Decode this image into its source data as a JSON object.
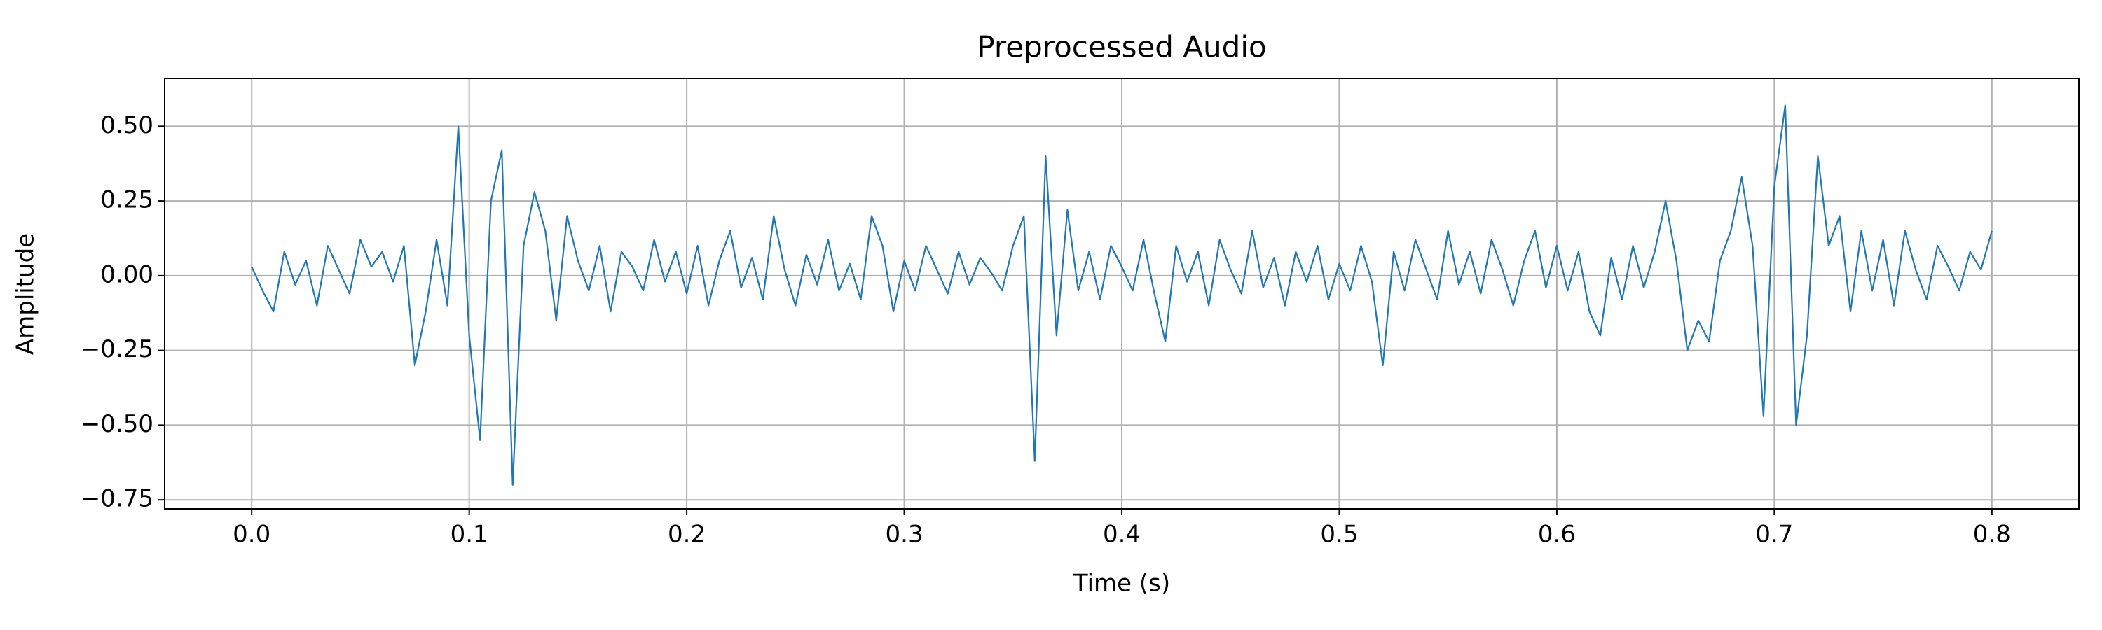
{
  "chart_data": {
    "type": "line",
    "title": "Preprocessed Audio",
    "x_label": "Time (s)",
    "y_label": "Amplitude",
    "grid": true,
    "xlim": [
      -0.04,
      0.84
    ],
    "ylim": [
      -0.78,
      0.66
    ],
    "xticks": [
      {
        "value": 0,
        "label": "0.0"
      },
      0.1,
      0.2,
      0.3,
      0.4,
      0.5,
      0.6,
      0.7,
      0.8
    ],
    "yticks": [
      {
        "value": -0.75,
        "label": "−0.75"
      },
      {
        "value": -0.5,
        "label": "−0.50"
      },
      {
        "value": -0.25,
        "label": "−0.25"
      },
      {
        "value": 0,
        "label": "0.00"
      },
      {
        "value": 0.25,
        "label": "0.25"
      },
      {
        "value": 0.5,
        "label": "0.50"
      }
    ],
    "x": [
      0,
      0.005,
      0.01,
      0.015,
      0.02,
      0.025,
      0.03,
      0.035,
      0.04,
      0.045,
      0.05,
      0.055,
      0.06,
      0.065,
      0.07,
      0.075,
      0.08,
      0.085,
      0.09,
      0.095,
      0.1,
      0.105,
      0.11,
      0.115,
      0.12,
      0.125,
      0.13,
      0.135,
      0.14,
      0.145,
      0.15,
      0.155,
      0.16,
      0.165,
      0.17,
      0.175,
      0.18,
      0.185,
      0.19,
      0.195,
      0.2,
      0.205,
      0.21,
      0.215,
      0.22,
      0.225,
      0.23,
      0.235,
      0.24,
      0.245,
      0.25,
      0.255,
      0.26,
      0.265,
      0.27,
      0.275,
      0.28,
      0.285,
      0.29,
      0.295,
      0.3,
      0.305,
      0.31,
      0.315,
      0.32,
      0.325,
      0.33,
      0.335,
      0.34,
      0.345,
      0.35,
      0.355,
      0.36,
      0.365,
      0.37,
      0.375,
      0.38,
      0.385,
      0.39,
      0.395,
      0.4,
      0.405,
      0.41,
      0.415,
      0.42,
      0.425,
      0.43,
      0.435,
      0.44,
      0.445,
      0.45,
      0.455,
      0.46,
      0.465,
      0.47,
      0.475,
      0.48,
      0.485,
      0.49,
      0.495,
      0.5,
      0.505,
      0.51,
      0.515,
      0.52,
      0.525,
      0.53,
      0.535,
      0.54,
      0.545,
      0.55,
      0.555,
      0.56,
      0.565,
      0.57,
      0.575,
      0.58,
      0.585,
      0.59,
      0.595,
      0.6,
      0.605,
      0.61,
      0.615,
      0.62,
      0.625,
      0.63,
      0.635,
      0.64,
      0.645,
      0.65,
      0.655,
      0.66,
      0.665,
      0.67,
      0.675,
      0.68,
      0.685,
      0.69,
      0.695,
      0.7,
      0.705,
      0.71,
      0.715,
      0.72,
      0.725,
      0.73,
      0.735,
      0.74,
      0.745,
      0.75,
      0.755,
      0.76,
      0.765,
      0.77,
      0.775,
      0.78,
      0.785,
      0.79,
      0.795,
      0.8
    ],
    "series": [
      {
        "color": "#1f77b4",
        "values": [
          0.03,
          -0.05,
          -0.12,
          0.08,
          -0.03,
          0.05,
          -0.1,
          0.1,
          0.02,
          -0.06,
          0.12,
          0.03,
          0.08,
          -0.02,
          0.1,
          -0.3,
          -0.12,
          0.12,
          -0.1,
          0.5,
          -0.2,
          -0.55,
          0.25,
          0.42,
          -0.7,
          0.1,
          0.28,
          0.15,
          -0.15,
          0.2,
          0.05,
          -0.05,
          0.1,
          -0.12,
          0.08,
          0.03,
          -0.05,
          0.12,
          -0.02,
          0.08,
          -0.06,
          0.1,
          -0.1,
          0.05,
          0.15,
          -0.04,
          0.06,
          -0.08,
          0.2,
          0.02,
          -0.1,
          0.07,
          -0.03,
          0.12,
          -0.05,
          0.04,
          -0.08,
          0.2,
          0.1,
          -0.12,
          0.05,
          -0.05,
          0.1,
          0.02,
          -0.06,
          0.08,
          -0.03,
          0.06,
          0.01,
          -0.05,
          0.1,
          0.2,
          -0.62,
          0.4,
          -0.2,
          0.22,
          -0.05,
          0.08,
          -0.08,
          0.1,
          0.03,
          -0.05,
          0.12,
          -0.06,
          -0.22,
          0.1,
          -0.02,
          0.08,
          -0.1,
          0.12,
          0.02,
          -0.06,
          0.15,
          -0.04,
          0.06,
          -0.1,
          0.08,
          -0.02,
          0.1,
          -0.08,
          0.04,
          -0.05,
          0.1,
          -0.02,
          -0.3,
          0.08,
          -0.05,
          0.12,
          0.02,
          -0.08,
          0.15,
          -0.03,
          0.08,
          -0.06,
          0.12,
          0.02,
          -0.1,
          0.05,
          0.15,
          -0.04,
          0.1,
          -0.05,
          0.08,
          -0.12,
          -0.2,
          0.06,
          -0.08,
          0.1,
          -0.04,
          0.08,
          0.25,
          0.05,
          -0.25,
          -0.15,
          -0.22,
          0.05,
          0.15,
          0.33,
          0.1,
          -0.47,
          0.3,
          0.57,
          -0.5,
          -0.2,
          0.4,
          0.1,
          0.2,
          -0.12,
          0.15,
          -0.05,
          0.12,
          -0.1,
          0.15,
          0.02,
          -0.08,
          0.1,
          0.03,
          -0.05,
          0.08,
          0.02,
          0.15
        ]
      }
    ]
  }
}
